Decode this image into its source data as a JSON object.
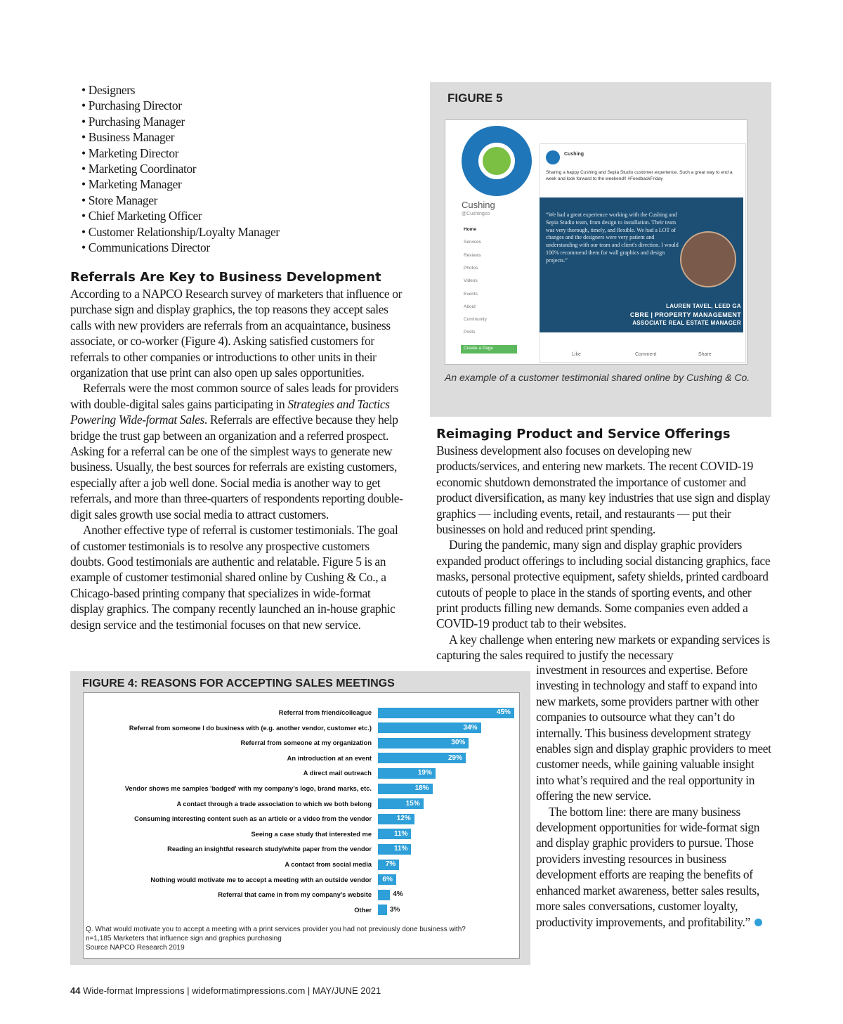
{
  "bullets": [
    "Designers",
    "Purchasing Director",
    "Purchasing Manager",
    "Business Manager",
    "Marketing Director",
    "Marketing Coordinator",
    "Marketing Manager",
    "Store Manager",
    "Chief Marketing Officer",
    "Customer Relationship/Loyalty Manager",
    "Communications Director"
  ],
  "left_article": {
    "heading": "Referrals Are Key to Business Development",
    "paragraphs": [
      {
        "text": "According to a NAPCO Research survey of marketers that influence or purchase sign and display graphics, the top reasons they accept sales calls with new providers are referrals from an acquaintance, business associate, or co-worker (Figure 4). Asking satisfied customers for referrals to other companies or introductions to other units in their organization that use print can also open up sales opportunities."
      },
      {
        "before": "Referrals were the most common source of sales leads for providers with double-digital sales gains participating in ",
        "italic": "Strategies and Tactics Powering Wide-format Sales",
        "after": ". Referrals are effective because they help bridge the trust gap between an organization and a referred prospect. Asking for a referral can be one of the simplest ways to generate new business. Usually, the best sources for referrals are existing customers, especially after a job well done. Social media is another way to get referrals, and more than three-quarters of respondents reporting double-digit sales growth use social media to attract customers."
      },
      {
        "text": "Another effective type of referral is customer testimonials. The goal of customer testimonials is to resolve any prospective customers doubts. Good testimonials are authentic and relatable. Figure 5 is an example of customer testimonial shared online by Cushing & Co., a Chicago-based printing company that specializes in wide-format display graphics. The company recently launched an in-house graphic design service and the testimonial focuses on that new service."
      }
    ]
  },
  "figure5": {
    "label": "FIGURE 5",
    "caption": "An example of a customer testimonial shared online by Cushing & Co.",
    "screenshot": {
      "page_name": "Cushing",
      "handle": "@Cushingco",
      "menu": [
        "Home",
        "Services",
        "Reviews",
        "Photos",
        "Videos",
        "Events",
        "About",
        "Community",
        "Posts"
      ],
      "button": "Create a Page",
      "post_author": "Cushing",
      "post_text": "Sharing a happy Cushing and Sepia Studio customer experience. Such a great way to end a week and look forward to the weekend!! #FeedbackFriday",
      "quote": "“We had a great experience working with the Cushing and Sepia Studio team, from design to installation. Their team was very thorough, timely, and flexible. We had a LOT of changes and the designers were very patient and understanding with our team and client's direction. I would 100% recommend them for wall graphics and design projects.”",
      "person_name": "LAUREN TAVEL, LEED GA",
      "person_company": "CBRE | PROPERTY MANAGEMENT",
      "person_title": "ASSOCIATE REAL ESTATE MANAGER",
      "actions": [
        "Like",
        "Comment",
        "Share"
      ]
    }
  },
  "right_article": {
    "heading": "Reimaging Product and Service Offerings",
    "paragraphs": [
      "Business development also focuses on developing new products/services, and entering new markets. The recent COVID-19 economic shutdown demonstrated the importance of customer and product diversification, as many key industries that use sign and display graphics — including events, retail, and restaurants — put their businesses on hold and reduced print spending.",
      "During the pandemic, many sign and display graphic providers expanded product offerings to including social distancing graphics, face masks, personal protective equipment, safety shields, printed cardboard cutouts of people to place in the stands of sporting events, and other print products filling new demands. Some companies even added a COVID-19 product tab to their websites.",
      "A key challenge when entering new markets or expanding services is capturing the sales required to justify the necessary",
      "investment in resources and expertise. Before investing in technology and staff to expand into new markets, some providers partner with other companies to outsource what they can’t do internally. This business development strategy enables sign and display graphic providers to meet customer needs, while gaining valuable insight into what’s required and the real opportunity in offering the new service.",
      "The bottom line: there are many business development opportunities for wide-format sign and display graphic providers to pursue. Those providers investing resources in business development efforts are reaping the benefits of enhanced market awareness, better sales results, more sales conversations, customer loyalty, productivity improvements, and profitability.”"
    ]
  },
  "chart_data": {
    "type": "bar",
    "orientation": "horizontal",
    "title": "FIGURE 4: REASONS FOR ACCEPTING SALES MEETINGS",
    "color": "#2e9fd8",
    "categories": [
      "Referral from friend/colleague",
      "Referral from someone I do business with (e.g. another vendor, customer etc.)",
      "Referral from someone at my organization",
      "An introduction at an event",
      "A direct mail outreach",
      "Vendor shows me samples 'badged' with my company’s logo, brand marks, etc.",
      "A contact through a trade association to which we both belong",
      "Consuming interesting content such as an article or a video from the vendor",
      "Seeing a case study that interested me",
      "Reading an insightful research study/white paper from the vendor",
      "A contact from social media",
      "Nothing would motivate me to accept a meeting with an outside vendor",
      "Referral that came in from my company’s website",
      "Other"
    ],
    "values": [
      45,
      34,
      30,
      29,
      19,
      18,
      15,
      12,
      11,
      11,
      7,
      6,
      4,
      3
    ],
    "value_labels": [
      "45%",
      "34%",
      "30%",
      "29%",
      "19%",
      "18%",
      "15%",
      "12%",
      "11%",
      "11%",
      "7%",
      "6%",
      "4%",
      "3%"
    ],
    "notes": [
      "Q. What would motivate you to accept a meeting with a print services provider you had not previously done business with?",
      "n=1,185 Marketers that influence sign and graphics purchasing",
      "Source NAPCO Research 2019"
    ]
  },
  "footer": {
    "page_number": "44",
    "text": "Wide-format Impressions | wideformatimpressions.com | MAY/JUNE 2021"
  }
}
